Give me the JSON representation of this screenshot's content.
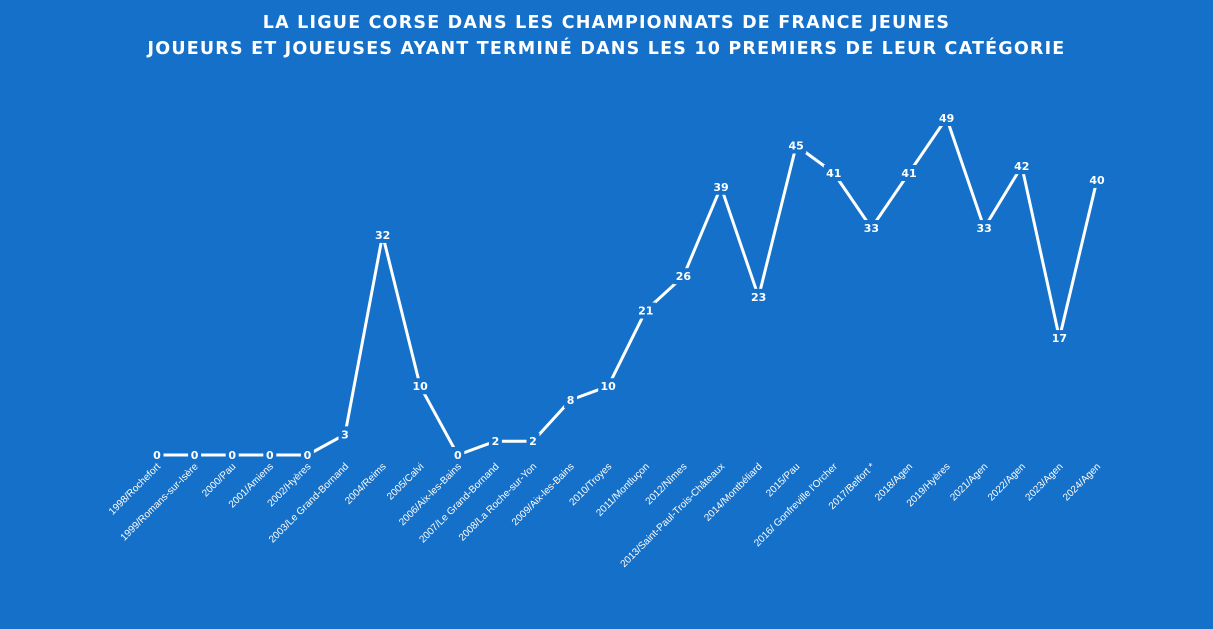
{
  "title": {
    "line1": "LA LIGUE CORSE DANS LES CHAMPIONNATS DE FRANCE JEUNES",
    "line2": "JOUEURS ET JOUEUSES AYANT TERMINÉ DANS LES 10 PREMIERS DE LEUR CATÉGORIE"
  },
  "colors": {
    "background": "#1570c9",
    "line": "#ffffff",
    "text": "#ffffff"
  },
  "chart_data": {
    "type": "line",
    "title": "LA LIGUE CORSE DANS LES CHAMPIONNATS DE FRANCE JEUNES — JOUEURS ET JOUEUSES AYANT TERMINÉ DANS LES 10 PREMIERS DE LEUR CATÉGORIE",
    "xlabel": "",
    "ylabel": "",
    "ylim": [
      0,
      49
    ],
    "grid": false,
    "legend": "none",
    "categories": [
      "1998/Rochefort",
      "1999/Romans-sur-Isère",
      "2000/Pau",
      "2001/Amiens",
      "2002/Hyères",
      "2003/Le Grand-Bornand",
      "2004/Reims",
      "2005/Calvi",
      "2006/Aix-les-Bains",
      "2007/Le Grand-Bornand",
      "2008/La Roche-sur-Yon",
      "2009/Aix-les-Bains",
      "2010/Troyes",
      "2011/Montluçon",
      "2012/Nîmes",
      "2013/Saint-Paul-Trois-Châteaux",
      "2014/Montbéliard",
      "2015/Pau",
      "2016/ Gonfreville l'Orcher",
      "2017/Belfort *",
      "2018/Agen",
      "2019/Hyères",
      "2021/Agen",
      "2022/Agen",
      "2023/Agen",
      "2024/Agen"
    ],
    "values": [
      0,
      0,
      0,
      0,
      0,
      3,
      32,
      10,
      0,
      2,
      2,
      8,
      10,
      21,
      26,
      39,
      23,
      45,
      41,
      33,
      41,
      49,
      33,
      42,
      17,
      40
    ]
  }
}
